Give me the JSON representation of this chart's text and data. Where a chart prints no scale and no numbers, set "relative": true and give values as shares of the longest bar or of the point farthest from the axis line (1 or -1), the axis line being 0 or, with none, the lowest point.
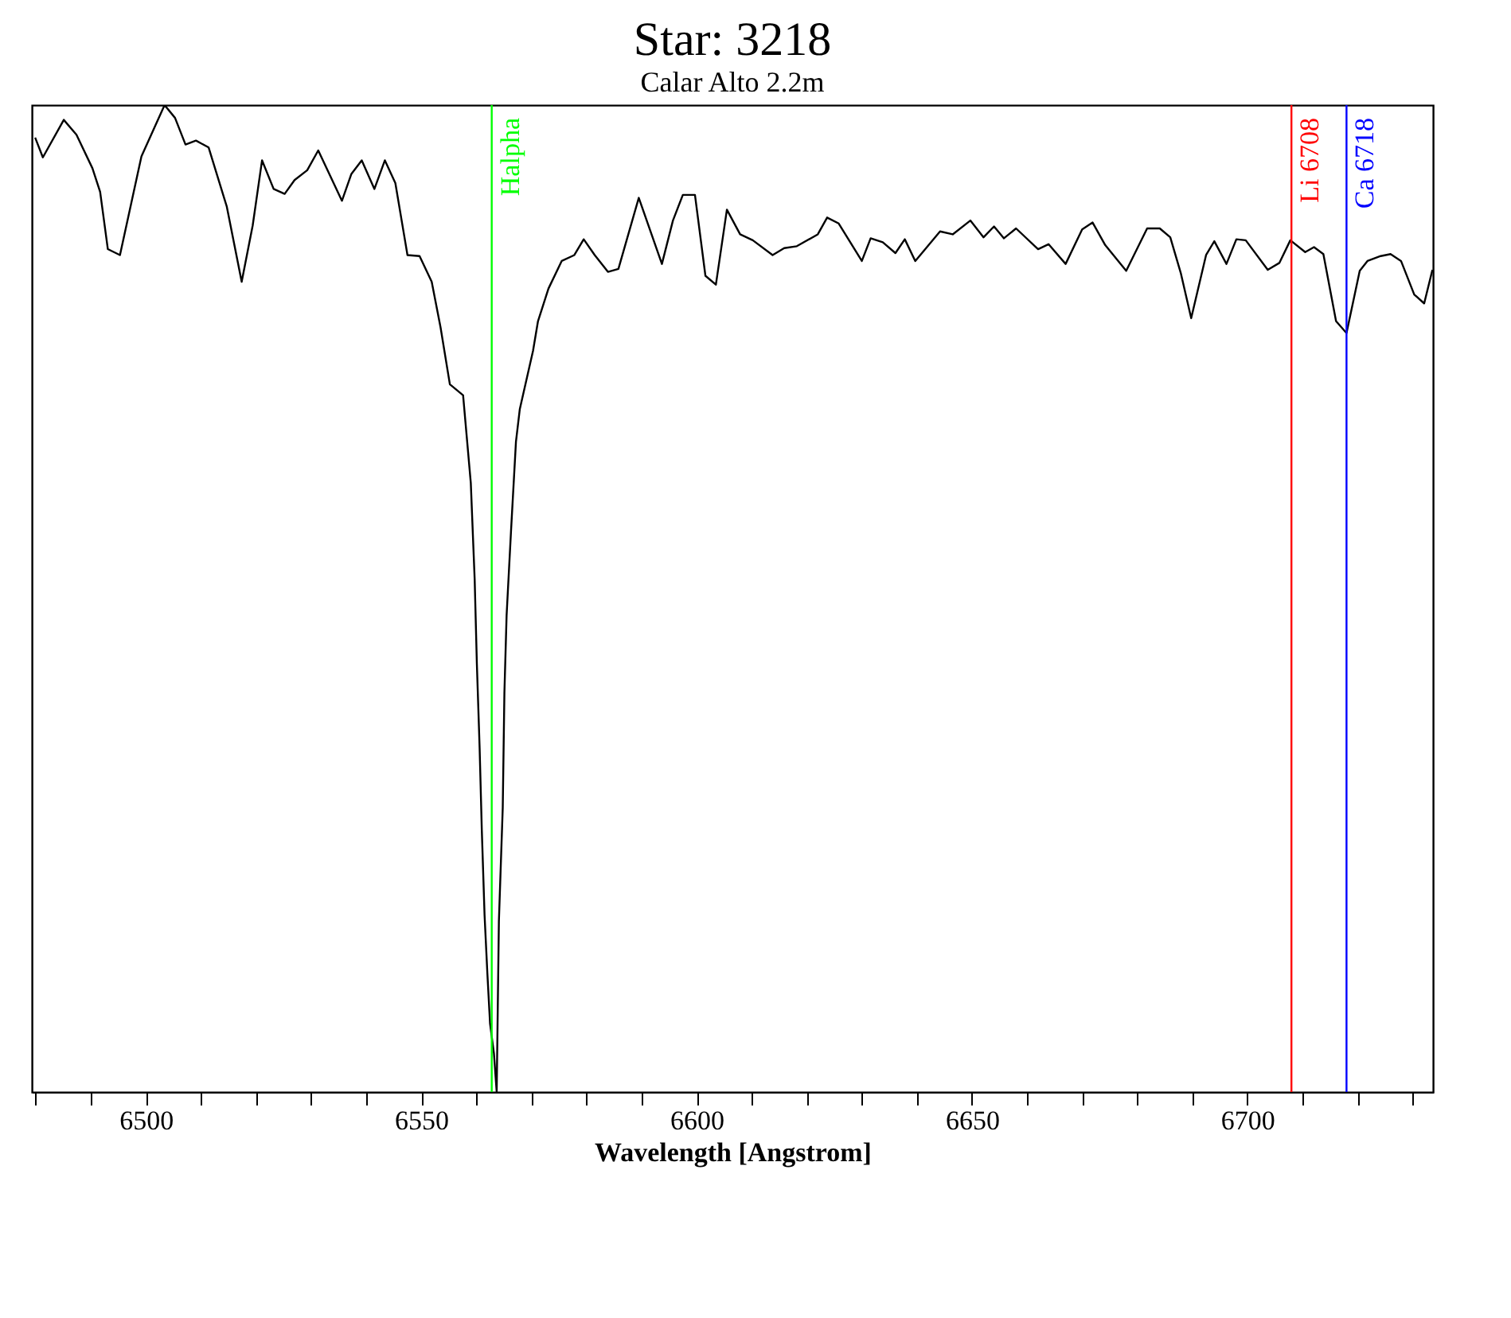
{
  "chart_data": {
    "type": "line",
    "title": "Star: 3218",
    "subtitle": "Calar Alto 2.2m",
    "xlabel": "Wavelength [Angstrom]",
    "relative": true,
    "xlim": [
      6479.3,
      6733.7
    ],
    "xticks": [
      {
        "value": 6480,
        "label": null
      },
      {
        "value": 6490,
        "label": null
      },
      6500,
      {
        "value": 6510,
        "label": null
      },
      {
        "value": 6520,
        "label": null
      },
      {
        "value": 6530,
        "label": null
      },
      {
        "value": 6540,
        "label": null
      },
      6550,
      {
        "value": 6560,
        "label": null
      },
      {
        "value": 6570,
        "label": null
      },
      {
        "value": 6580,
        "label": null
      },
      {
        "value": 6590,
        "label": null
      },
      6600,
      {
        "value": 6610,
        "label": null
      },
      {
        "value": 6620,
        "label": null
      },
      {
        "value": 6630,
        "label": null
      },
      {
        "value": 6640,
        "label": null
      },
      6650,
      {
        "value": 6660,
        "label": null
      },
      {
        "value": 6670,
        "label": null
      },
      {
        "value": 6680,
        "label": null
      },
      {
        "value": 6690,
        "label": null
      },
      6700,
      {
        "value": 6710,
        "label": null
      },
      {
        "value": 6720,
        "label": null
      },
      {
        "value": 6730,
        "label": null
      }
    ],
    "x": [
      6479.9,
      6481.3,
      6485.1,
      6487.4,
      6490.3,
      6491.7,
      6493.1,
      6495.3,
      6499.2,
      6503.4,
      6505.3,
      6507.2,
      6509.1,
      6511.4,
      6514.7,
      6517.4,
      6519.4,
      6521.1,
      6523.2,
      6525.2,
      6527.0,
      6529.3,
      6531.3,
      6535.6,
      6537.3,
      6539.2,
      6541.5,
      6543.4,
      6545.3,
      6547.5,
      6549.7,
      6551.9,
      6553.5,
      6555.2,
      6557.6,
      6559.0,
      6559.7,
      6560.1,
      6560.6,
      6561.0,
      6561.5,
      6562.0,
      6562.5,
      6563.2,
      6563.7,
      6564.1,
      6564.8,
      6565.1,
      6565.5,
      6566.3,
      6567.2,
      6567.9,
      6570.3,
      6571.2,
      6573.1,
      6575.5,
      6577.8,
      6579.5,
      6581.5,
      6583.9,
      6585.8,
      6589.5,
      6593.7,
      6595.7,
      6597.5,
      6599.7,
      6601.6,
      6603.5,
      6605.5,
      6607.9,
      6610.2,
      6613.8,
      6615.9,
      6618.2,
      6622.0,
      6623.7,
      6625.8,
      6630.0,
      6631.6,
      6633.8,
      6636.1,
      6637.8,
      6639.7,
      6644.2,
      6646.5,
      6649.7,
      6652.1,
      6654.0,
      6655.8,
      6658.0,
      6662.0,
      6663.9,
      6667.0,
      6670.0,
      6671.9,
      6674.2,
      6678.0,
      6681.8,
      6684.1,
      6686.0,
      6687.9,
      6689.8,
      6692.5,
      6694.0,
      6696.2,
      6698.0,
      6699.7,
      6703.7,
      6705.8,
      6707.8,
      6710.5,
      6712.1,
      6713.8,
      6716.1,
      6718.0,
      6720.4,
      6721.8,
      6724.2,
      6726.0,
      6727.9,
      6730.3,
      6732.1,
      6733.6
    ],
    "series": [
      {
        "color": "#000000",
        "values": [
          0.967,
          0.947,
          0.985,
          0.97,
          0.936,
          0.912,
          0.854,
          0.848,
          0.948,
          1.0,
          0.987,
          0.96,
          0.964,
          0.957,
          0.897,
          0.821,
          0.878,
          0.944,
          0.915,
          0.91,
          0.924,
          0.934,
          0.954,
          0.903,
          0.93,
          0.944,
          0.915,
          0.944,
          0.921,
          0.848,
          0.847,
          0.821,
          0.775,
          0.717,
          0.706,
          0.617,
          0.52,
          0.434,
          0.349,
          0.265,
          0.179,
          0.121,
          0.069,
          0.039,
          0,
          0.173,
          0.288,
          0.404,
          0.483,
          0.568,
          0.659,
          0.692,
          0.751,
          0.781,
          0.814,
          0.842,
          0.848,
          0.864,
          0.848,
          0.831,
          0.834,
          0.906,
          0.839,
          0.883,
          0.909,
          0.909,
          0.827,
          0.818,
          0.894,
          0.869,
          0.863,
          0.848,
          0.855,
          0.857,
          0.869,
          0.886,
          0.88,
          0.842,
          0.865,
          0.861,
          0.85,
          0.864,
          0.842,
          0.872,
          0.869,
          0.883,
          0.866,
          0.877,
          0.865,
          0.875,
          0.854,
          0.859,
          0.839,
          0.874,
          0.881,
          0.858,
          0.832,
          0.875,
          0.875,
          0.866,
          0.83,
          0.784,
          0.848,
          0.862,
          0.839,
          0.864,
          0.863,
          0.833,
          0.84,
          0.863,
          0.851,
          0.856,
          0.849,
          0.781,
          0.769,
          0.832,
          0.842,
          0.847,
          0.849,
          0.842,
          0.808,
          0.799,
          0.833
        ]
      }
    ],
    "ref_lines": [
      {
        "axis": "x",
        "value": 6562.8,
        "label": "Halpha",
        "color": "#00ff00"
      },
      {
        "axis": "x",
        "value": 6708,
        "label": "Li 6708",
        "color": "#ff0000"
      },
      {
        "axis": "x",
        "value": 6718,
        "label": "Ca 6718",
        "color": "#0000ff"
      }
    ]
  }
}
